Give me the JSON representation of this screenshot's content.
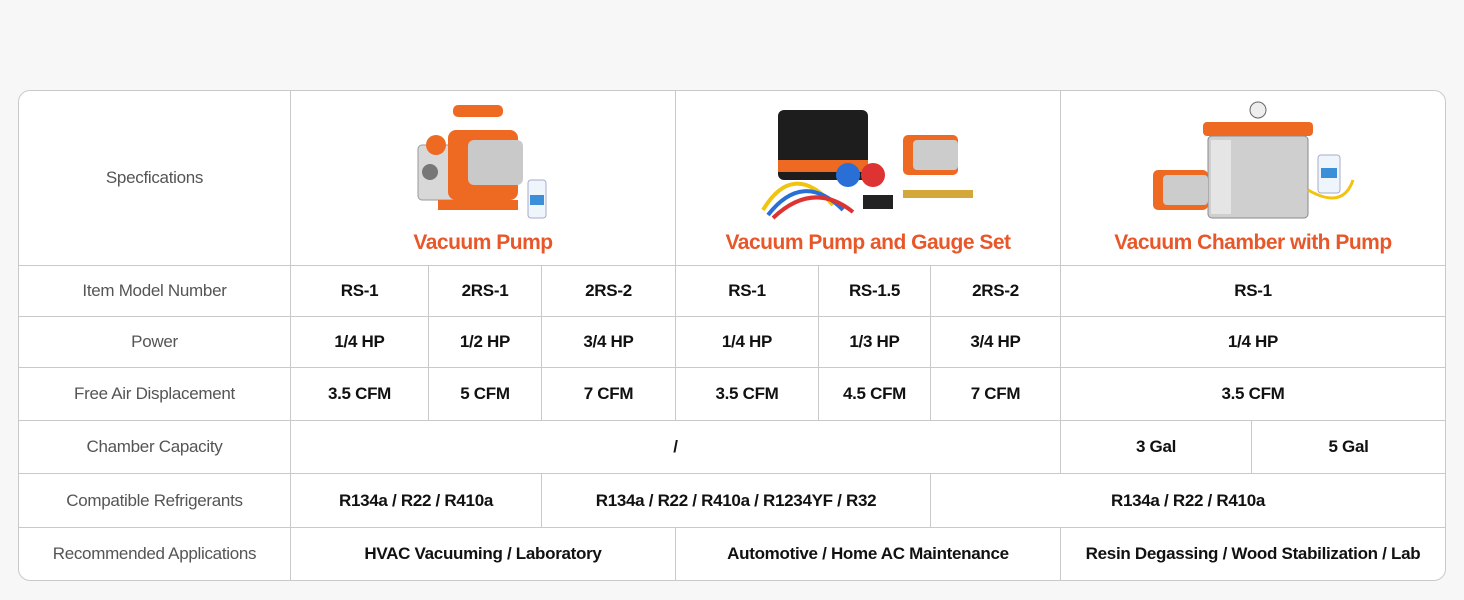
{
  "header": {
    "spec_label": "Specfications",
    "products": [
      {
        "title": "Vacuum Pump",
        "image": "vacuum-pump-with-oil-bottle"
      },
      {
        "title": "Vacuum Pump and Gauge Set",
        "image": "pump-gauge-set-with-bag-and-hoses"
      },
      {
        "title": "Vacuum Chamber with Pump",
        "image": "steel-chamber-with-pump"
      }
    ]
  },
  "rows": {
    "model": {
      "label": "Item Model Number",
      "values": [
        "RS-1",
        "2RS-1",
        "2RS-2",
        "RS-1",
        "RS-1.5",
        "2RS-2",
        "RS-1"
      ]
    },
    "power": {
      "label": "Power",
      "values": [
        "1/4 HP",
        "1/2 HP",
        "3/4 HP",
        "1/4 HP",
        "1/3 HP",
        "3/4 HP",
        "1/4 HP"
      ]
    },
    "displacement": {
      "label": "Free Air Displacement",
      "values": [
        "3.5 CFM",
        "5 CFM",
        "7 CFM",
        "3.5 CFM",
        "4.5 CFM",
        "7 CFM",
        "3.5 CFM"
      ]
    },
    "capacity": {
      "label": "Chamber Capacity",
      "values": [
        "/",
        "3 Gal",
        "5 Gal"
      ]
    },
    "refrigerants": {
      "label": "Compatible Refrigerants",
      "values": [
        "R134a / R22 / R410a",
        "R134a / R22 / R410a / R1234YF / R32",
        "R134a / R22 / R410a"
      ]
    },
    "applications": {
      "label": "Recommended Applications",
      "values": [
        "HVAC Vacuuming / Laboratory",
        "Automotive / Home AC Maintenance",
        "Resin Degassing / Wood Stabilization / Lab"
      ]
    }
  },
  "colors": {
    "accent": "#e8572a",
    "border": "#c9c9c9",
    "background": "#f7f7f7"
  }
}
